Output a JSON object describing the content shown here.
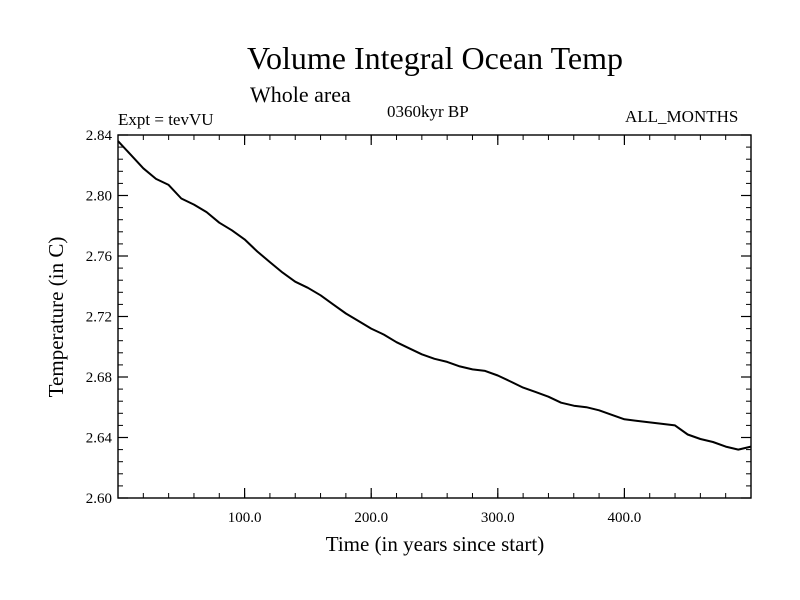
{
  "chart_data": {
    "type": "line",
    "title": "Volume Integral Ocean Temp",
    "subtitle": "Whole area",
    "annotations": {
      "experiment": "Expt = tevVU",
      "era": "0360kyr BP",
      "months": "ALL_MONTHS"
    },
    "xlabel": "Time (in years since start)",
    "ylabel": "Temperature (in C)",
    "xlim": [
      0,
      500
    ],
    "ylim": [
      2.6,
      2.84
    ],
    "x_ticks": [
      100.0,
      200.0,
      300.0,
      400.0
    ],
    "x_tick_labels": [
      "100.0",
      "200.0",
      "300.0",
      "400.0"
    ],
    "y_ticks": [
      2.6,
      2.64,
      2.68,
      2.72,
      2.76,
      2.8,
      2.84
    ],
    "y_tick_labels": [
      "2.60",
      "2.64",
      "2.68",
      "2.72",
      "2.76",
      "2.80",
      "2.84"
    ],
    "grid": false,
    "series": [
      {
        "x": [
          0,
          10,
          20,
          30,
          40,
          50,
          60,
          70,
          80,
          90,
          100,
          110,
          120,
          130,
          140,
          150,
          160,
          170,
          180,
          190,
          200,
          210,
          220,
          230,
          240,
          250,
          260,
          270,
          280,
          290,
          300,
          310,
          320,
          330,
          340,
          350,
          360,
          370,
          380,
          390,
          400,
          410,
          420,
          430,
          440,
          450,
          460,
          470,
          480,
          490,
          500
        ],
        "values": [
          2.836,
          2.827,
          2.818,
          2.811,
          2.807,
          2.798,
          2.794,
          2.789,
          2.782,
          2.777,
          2.771,
          2.763,
          2.756,
          2.749,
          2.743,
          2.739,
          2.734,
          2.728,
          2.722,
          2.717,
          2.712,
          2.708,
          2.703,
          2.699,
          2.695,
          2.692,
          2.69,
          2.687,
          2.685,
          2.684,
          2.681,
          2.677,
          2.673,
          2.67,
          2.667,
          2.663,
          2.661,
          2.66,
          2.658,
          2.655,
          2.652,
          2.651,
          2.65,
          2.649,
          2.648,
          2.642,
          2.639,
          2.637,
          2.634,
          2.632,
          2.634
        ]
      }
    ]
  }
}
